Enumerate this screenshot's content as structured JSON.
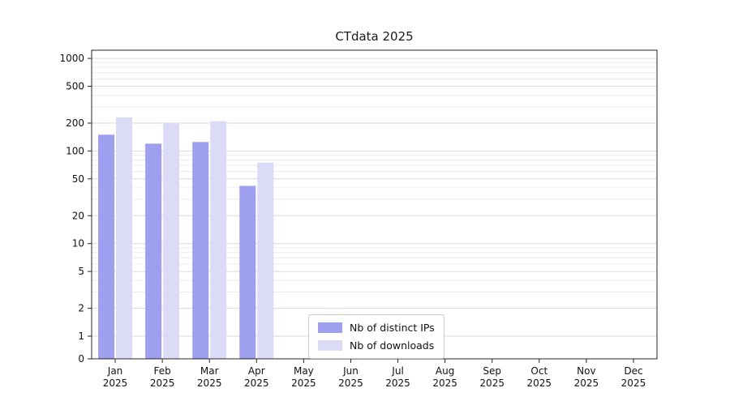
{
  "chart_data": {
    "type": "bar",
    "title": "CTdata 2025",
    "xlabel": "",
    "ylabel": "",
    "yscale": "symlog",
    "ylim": [
      0,
      1200
    ],
    "yticks": [
      0,
      1,
      2,
      5,
      10,
      20,
      50,
      100,
      200,
      500,
      1000
    ],
    "gridlines_minor": [
      1,
      2,
      3,
      4,
      5,
      6,
      7,
      8,
      9,
      10,
      20,
      30,
      40,
      50,
      60,
      70,
      80,
      90,
      100,
      200,
      300,
      400,
      500,
      600,
      700,
      800,
      900,
      1000
    ],
    "grid": "horizontal-only",
    "categories": [
      "Jan",
      "Feb",
      "Mar",
      "Apr",
      "May",
      "Jun",
      "Jul",
      "Aug",
      "Sep",
      "Oct",
      "Nov",
      "Dec"
    ],
    "year_label": "2025",
    "series": [
      {
        "name": "Nb of distinct IPs",
        "color": "#9f9fef",
        "values": [
          150,
          120,
          125,
          42,
          0,
          0,
          0,
          0,
          0,
          0,
          0,
          0
        ]
      },
      {
        "name": "Nb of downloads",
        "color": "#dbdbf8",
        "values": [
          230,
          200,
          210,
          75,
          0,
          0,
          0,
          0,
          0,
          0,
          0,
          0
        ]
      }
    ],
    "legend": {
      "position": "lower center",
      "entries": [
        "Nb of distinct IPs",
        "Nb of downloads"
      ]
    }
  }
}
